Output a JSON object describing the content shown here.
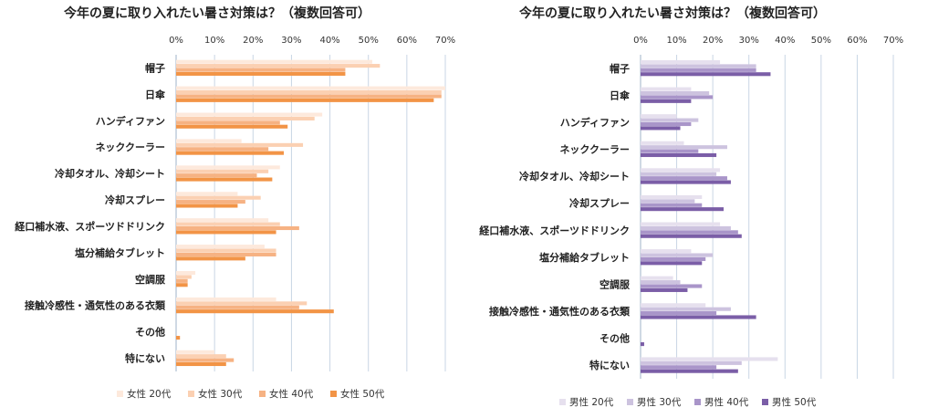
{
  "chart_data": [
    {
      "type": "bar",
      "orientation": "horizontal",
      "title": "今年の夏に取り入れたい暑さ対策は？（複数回答可）",
      "categories": [
        "帽子",
        "日傘",
        "ハンディファン",
        "ネッククーラー",
        "冷却タオル、冷却シート",
        "冷却スプレー",
        "経口補水液、スポーツドドリンク",
        "塩分補給タブレット",
        "空調服",
        "接触冷感性・通気性のある衣類",
        "その他",
        "特にない"
      ],
      "tick_labels": [
        "0%",
        "10%",
        "20%",
        "30%",
        "40%",
        "50%",
        "60%",
        "70%"
      ],
      "xlim": [
        0,
        70
      ],
      "grid": true,
      "legend_position": "bottom",
      "series": [
        {
          "name": "女性 20代",
          "color": "#fde9dc",
          "values": [
            51,
            70,
            38,
            17,
            27,
            16,
            24,
            23,
            5,
            26,
            0,
            10
          ]
        },
        {
          "name": "女性 30代",
          "color": "#fbd0b2",
          "values": [
            53,
            69,
            36,
            33,
            24,
            22,
            27,
            26,
            4,
            34,
            0,
            13
          ]
        },
        {
          "name": "女性 40代",
          "color": "#f6b283",
          "values": [
            44,
            69,
            27,
            24,
            21,
            18,
            32,
            26,
            3,
            32,
            0,
            15
          ]
        },
        {
          "name": "女性 50代",
          "color": "#f29446",
          "values": [
            44,
            67,
            29,
            28,
            25,
            16,
            26,
            18,
            3,
            41,
            1,
            13
          ]
        }
      ]
    },
    {
      "type": "bar",
      "orientation": "horizontal",
      "title": "今年の夏に取り入れたい暑さ対策は？（複数回答可）",
      "categories": [
        "帽子",
        "日傘",
        "ハンディファン",
        "ネッククーラー",
        "冷却タオル、冷却シート",
        "冷却スプレー",
        "経口補水液、スポーツドドリンク",
        "塩分補給タブレット",
        "空調服",
        "接触冷感性・通気性のある衣類",
        "その他",
        "特にない"
      ],
      "tick_labels": [
        "0%",
        "10%",
        "20%",
        "30%",
        "40%",
        "50%",
        "60%",
        "70%"
      ],
      "xlim": [
        0,
        70
      ],
      "grid": true,
      "legend_position": "bottom",
      "series": [
        {
          "name": "男性 20代",
          "color": "#e6e0ee",
          "values": [
            22,
            14,
            10,
            12,
            22,
            17,
            22,
            14,
            9,
            18,
            0,
            38
          ]
        },
        {
          "name": "男性 30代",
          "color": "#cdc3df",
          "values": [
            32,
            19,
            16,
            24,
            21,
            15,
            25,
            20,
            11,
            25,
            0,
            28
          ]
        },
        {
          "name": "男性 40代",
          "color": "#a995c9",
          "values": [
            32,
            20,
            14,
            16,
            24,
            17,
            27,
            18,
            17,
            21,
            0,
            21
          ]
        },
        {
          "name": "男性 50代",
          "color": "#7b5ea7",
          "values": [
            36,
            14,
            11,
            21,
            25,
            23,
            28,
            17,
            13,
            32,
            1,
            27
          ]
        }
      ]
    }
  ]
}
